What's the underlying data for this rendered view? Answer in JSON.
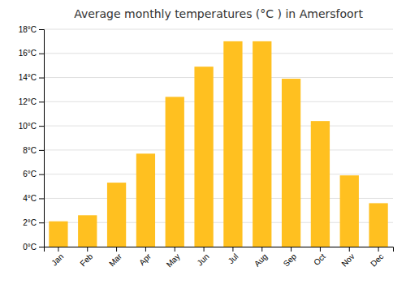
{
  "chart_data": {
    "type": "bar",
    "title": "Average monthly temperatures (°C ) in Amersfoort",
    "categories": [
      "Jan",
      "Feb",
      "Mar",
      "Apr",
      "May",
      "Jun",
      "Jul",
      "Aug",
      "Sep",
      "Oct",
      "Nov",
      "Dec"
    ],
    "values": [
      2.1,
      2.6,
      5.3,
      7.7,
      12.4,
      14.9,
      17.0,
      17.0,
      13.9,
      10.4,
      5.9,
      3.6
    ],
    "color": "#FFC020",
    "ylim": [
      0,
      18
    ],
    "yticks": [
      {
        "value": 0,
        "label": "0°C"
      },
      {
        "value": 2,
        "label": "2°C"
      },
      {
        "value": 4,
        "label": "4°C"
      },
      {
        "value": 6,
        "label": "6°C"
      },
      {
        "value": 8,
        "label": "8°C"
      },
      {
        "value": 10,
        "label": "10°C"
      },
      {
        "value": 12,
        "label": "12°C"
      },
      {
        "value": 14,
        "label": "14°C"
      },
      {
        "value": 16,
        "label": "16°C"
      },
      {
        "value": 18,
        "label": "18°C"
      }
    ],
    "grid": true
  }
}
